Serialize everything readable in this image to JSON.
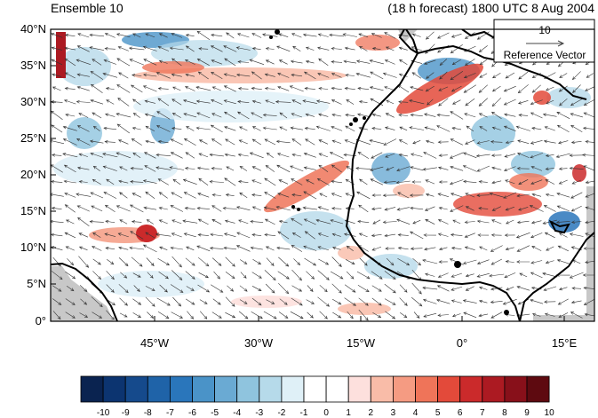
{
  "header": {
    "left_title": "Ensemble 10",
    "right_title": "(18 h forecast) 1800 UTC 8 Aug 2004"
  },
  "map": {
    "lat_labels": [
      "40°N",
      "35°N",
      "30°N",
      "25°N",
      "20°N",
      "15°N",
      "10°N",
      "5°N",
      "0°"
    ],
    "lon_labels": [
      "45°W",
      "30°W",
      "15°W",
      "0°",
      "15°E"
    ],
    "lat_range": [
      0,
      40
    ],
    "lon_range": [
      -57,
      19
    ],
    "ocean_color": "#ffffff",
    "coast_color": "#000000"
  },
  "reference_vector": {
    "magnitude": "10",
    "label": "Reference Vector"
  },
  "colorbar": {
    "labels": [
      "-10",
      "-9",
      "-8",
      "-7",
      "-6",
      "-5",
      "-4",
      "-3",
      "-2",
      "-1",
      "0",
      "1",
      "2",
      "3",
      "4",
      "5",
      "6",
      "7",
      "8",
      "9",
      "10"
    ],
    "colors": [
      "#0a2350",
      "#0c3470",
      "#154a8c",
      "#1f63a8",
      "#2a76bb",
      "#4a93c8",
      "#6aaad3",
      "#8fc4de",
      "#b6daea",
      "#dff0f7",
      "#ffffff",
      "#ffffff",
      "#fde0dd",
      "#f9bca8",
      "#f59b82",
      "#ef7459",
      "#e34a3a",
      "#cb2a2b",
      "#ac1a22",
      "#88101a",
      "#5e0a10"
    ]
  }
}
